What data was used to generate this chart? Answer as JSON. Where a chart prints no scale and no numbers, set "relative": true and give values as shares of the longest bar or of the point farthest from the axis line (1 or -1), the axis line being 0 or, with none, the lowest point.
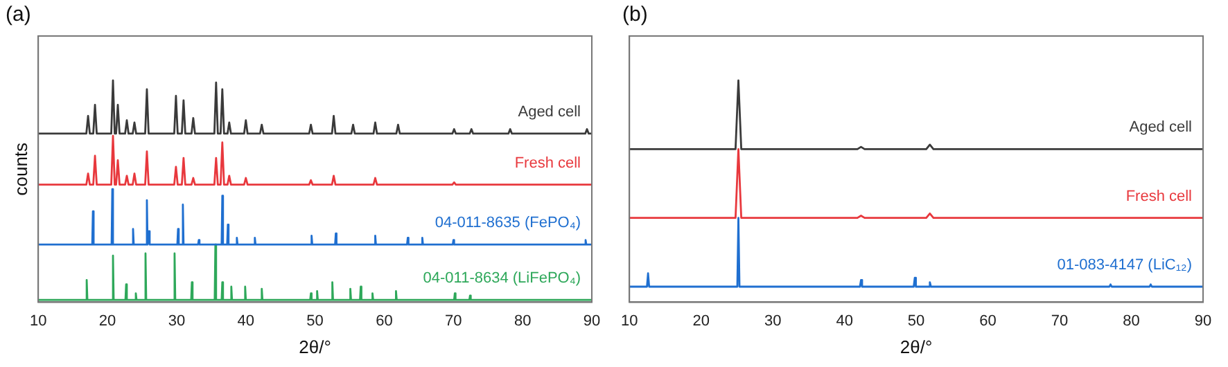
{
  "chart_data": [
    {
      "type": "line",
      "title": "(a)",
      "xlabel": "2θ/°",
      "ylabel": "counts",
      "relative": true,
      "legend": false,
      "grid": false,
      "marker": "none",
      "xlim": [
        10,
        90
      ],
      "xticks": [
        10,
        20,
        30,
        40,
        50,
        60,
        70,
        80,
        90
      ],
      "series": [
        {
          "name": "Aged cell",
          "color": "#3a3a3a",
          "x": [
            10,
            16.95,
            17.2,
            17.45,
            17.95,
            18.2,
            18.45,
            20.55,
            20.8,
            21.05,
            21.25,
            21.5,
            21.75,
            22.55,
            22.8,
            23.05,
            23.65,
            23.9,
            24.15,
            25.45,
            25.7,
            25.95,
            29.65,
            29.9,
            30.15,
            30.75,
            31.0,
            31.25,
            32.15,
            32.4,
            32.65,
            35.45,
            35.7,
            35.95,
            36.35,
            36.6,
            36.85,
            37.35,
            37.6,
            37.85,
            39.75,
            40.0,
            40.25,
            42.05,
            42.3,
            42.55,
            49.15,
            49.4,
            49.65,
            52.45,
            52.7,
            52.95,
            55.25,
            55.5,
            55.75,
            58.45,
            58.7,
            58.95,
            61.75,
            62.0,
            62.25,
            69.85,
            70.1,
            70.35,
            72.35,
            72.6,
            72.85,
            77.95,
            78.2,
            78.45,
            89.05,
            89.3,
            89.55,
            90
          ],
          "values": [
            0.76,
            0.76,
            0.84,
            0.76,
            0.76,
            0.89,
            0.76,
            0.76,
            1,
            0.76,
            0.76,
            0.89,
            0.76,
            0.76,
            0.82,
            0.76,
            0.76,
            0.81,
            0.76,
            0.76,
            0.96,
            0.76,
            0.76,
            0.93,
            0.76,
            0.76,
            0.91,
            0.76,
            0.76,
            0.83,
            0.76,
            0.76,
            0.99,
            0.76,
            0.76,
            0.96,
            0.76,
            0.76,
            0.81,
            0.76,
            0.76,
            0.82,
            0.76,
            0.76,
            0.8,
            0.76,
            0.76,
            0.8,
            0.76,
            0.76,
            0.84,
            0.76,
            0.76,
            0.8,
            0.76,
            0.76,
            0.81,
            0.76,
            0.76,
            0.8,
            0.76,
            0.76,
            0.78,
            0.76,
            0.76,
            0.78,
            0.76,
            0.76,
            0.78,
            0.76,
            0.76,
            0.78,
            0.76,
            0.76
          ]
        },
        {
          "name": "Fresh cell",
          "color": "#e8383d",
          "x": [
            10,
            16.95,
            17.2,
            17.45,
            17.95,
            18.2,
            18.45,
            20.55,
            20.8,
            21.05,
            21.25,
            21.5,
            21.75,
            22.55,
            22.8,
            23.05,
            23.65,
            23.9,
            24.15,
            25.45,
            25.7,
            25.95,
            29.65,
            29.9,
            30.15,
            30.75,
            31.0,
            31.25,
            32.15,
            32.4,
            32.65,
            35.45,
            35.7,
            35.95,
            36.35,
            36.6,
            36.85,
            37.35,
            37.6,
            37.85,
            39.75,
            40.0,
            40.25,
            49.15,
            49.4,
            49.65,
            52.45,
            52.7,
            52.95,
            58.45,
            58.7,
            58.95,
            69.85,
            70.1,
            70.35,
            90
          ],
          "values": [
            0.53,
            0.53,
            0.58,
            0.53,
            0.53,
            0.66,
            0.53,
            0.53,
            0.75,
            0.53,
            0.53,
            0.64,
            0.53,
            0.53,
            0.57,
            0.53,
            0.53,
            0.58,
            0.53,
            0.53,
            0.68,
            0.53,
            0.53,
            0.61,
            0.53,
            0.53,
            0.65,
            0.53,
            0.53,
            0.56,
            0.53,
            0.53,
            0.65,
            0.53,
            0.53,
            0.72,
            0.53,
            0.53,
            0.57,
            0.53,
            0.53,
            0.56,
            0.53,
            0.53,
            0.55,
            0.53,
            0.53,
            0.57,
            0.53,
            0.53,
            0.56,
            0.53,
            0.53,
            0.54,
            0.53,
            0.53
          ]
        },
        {
          "name": "04-011-8635 (FePO₄)",
          "color": "#1f6fd0",
          "x": [
            10,
            17.8,
            17.9,
            18,
            20.6,
            20.7,
            20.8,
            23.6,
            23.7,
            23.8,
            25.6,
            25.7,
            25.8,
            25.9,
            26,
            26.1,
            30.1,
            30.2,
            30.3,
            30.8,
            30.9,
            31,
            33.1,
            33.2,
            33.3,
            36.5,
            36.6,
            36.7,
            37.3,
            37.4,
            37.5,
            38.6,
            38.7,
            38.8,
            41.2,
            41.3,
            41.4,
            49.4,
            49.5,
            49.6,
            52.9,
            53,
            53.1,
            58.6,
            58.7,
            58.8,
            63.3,
            63.4,
            63.5,
            65.4,
            65.5,
            65.6,
            69.9,
            70,
            70.1,
            89,
            89.1,
            89.2,
            90
          ],
          "values": [
            0.26,
            0.26,
            0.41,
            0.26,
            0.26,
            0.51,
            0.26,
            0.26,
            0.33,
            0.26,
            0.26,
            0.46,
            0.26,
            0.26,
            0.32,
            0.26,
            0.26,
            0.33,
            0.26,
            0.26,
            0.44,
            0.26,
            0.26,
            0.28,
            0.26,
            0.26,
            0.48,
            0.26,
            0.26,
            0.35,
            0.26,
            0.26,
            0.29,
            0.26,
            0.26,
            0.29,
            0.26,
            0.26,
            0.3,
            0.26,
            0.26,
            0.31,
            0.26,
            0.26,
            0.3,
            0.26,
            0.26,
            0.29,
            0.26,
            0.26,
            0.29,
            0.26,
            0.26,
            0.28,
            0.26,
            0.26,
            0.28,
            0.26,
            0.26
          ]
        },
        {
          "name": "04-011-8634 (LiFePO₄)",
          "color": "#2ea85a",
          "x": [
            10,
            16.9,
            17,
            17.1,
            20.7,
            20.8,
            20.9,
            22.6,
            22.7,
            22.8,
            24,
            24.1,
            24.2,
            25.4,
            25.5,
            25.6,
            29.6,
            29.7,
            29.8,
            32.1,
            32.2,
            32.3,
            35.5,
            35.6,
            35.7,
            36.5,
            36.6,
            36.7,
            37.8,
            37.9,
            38,
            39.8,
            39.9,
            40,
            42.2,
            42.3,
            42.4,
            49.3,
            49.4,
            49.5,
            50.2,
            50.3,
            50.4,
            52.4,
            52.5,
            52.6,
            55,
            55.1,
            55.2,
            56.5,
            56.6,
            56.7,
            58.2,
            58.3,
            58.4,
            61.6,
            61.7,
            61.8,
            70.1,
            70.2,
            70.3,
            72.3,
            72.4,
            72.5,
            90
          ],
          "values": [
            0.01,
            0.01,
            0.1,
            0.01,
            0.01,
            0.21,
            0.01,
            0.01,
            0.08,
            0.01,
            0.01,
            0.04,
            0.01,
            0.01,
            0.22,
            0.01,
            0.01,
            0.22,
            0.01,
            0.01,
            0.09,
            0.01,
            0.01,
            0.26,
            0.01,
            0.01,
            0.09,
            0.01,
            0.01,
            0.07,
            0.01,
            0.01,
            0.07,
            0.01,
            0.01,
            0.06,
            0.01,
            0.01,
            0.04,
            0.01,
            0.01,
            0.05,
            0.01,
            0.01,
            0.09,
            0.01,
            0.01,
            0.06,
            0.01,
            0.01,
            0.07,
            0.01,
            0.01,
            0.04,
            0.01,
            0.01,
            0.05,
            0.01,
            0.01,
            0.04,
            0.01,
            0.01,
            0.03,
            0.01,
            0.01
          ]
        }
      ]
    },
    {
      "type": "line",
      "title": "(b)",
      "xlabel": "2θ/°",
      "relative": true,
      "legend": false,
      "grid": false,
      "marker": "none",
      "xlim": [
        10,
        90
      ],
      "xticks": [
        10,
        20,
        30,
        40,
        50,
        60,
        70,
        80,
        90
      ],
      "series": [
        {
          "name": "Aged cell",
          "color": "#3a3a3a",
          "x": [
            10,
            24.8,
            25.2,
            25.6,
            41.8,
            42.3,
            42.8,
            51.4,
            51.9,
            52.4,
            90
          ],
          "values": [
            0.69,
            0.69,
            1,
            0.69,
            0.69,
            0.7,
            0.69,
            0.69,
            0.71,
            0.69,
            0.69
          ]
        },
        {
          "name": "Fresh cell",
          "color": "#e8383d",
          "x": [
            10,
            24.8,
            25.2,
            25.6,
            41.8,
            42.3,
            42.8,
            51.4,
            51.9,
            52.4,
            90
          ],
          "values": [
            0.38,
            0.38,
            0.69,
            0.38,
            0.38,
            0.39,
            0.38,
            0.38,
            0.4,
            0.38,
            0.38
          ]
        },
        {
          "name": "01-083-4147 (LiC₁₂)",
          "color": "#1f6fd0",
          "x": [
            10,
            12.45,
            12.6,
            12.75,
            25.05,
            25.2,
            25.35,
            42.15,
            42.3,
            42.45,
            49.65,
            49.8,
            49.95,
            51.75,
            51.9,
            52.05,
            76.95,
            77.1,
            77.25,
            82.55,
            82.7,
            82.85,
            90
          ],
          "values": [
            0.07,
            0.07,
            0.13,
            0.07,
            0.07,
            0.38,
            0.07,
            0.07,
            0.1,
            0.07,
            0.07,
            0.11,
            0.07,
            0.07,
            0.09,
            0.07,
            0.07,
            0.08,
            0.07,
            0.07,
            0.08,
            0.07,
            0.07
          ]
        }
      ]
    }
  ]
}
